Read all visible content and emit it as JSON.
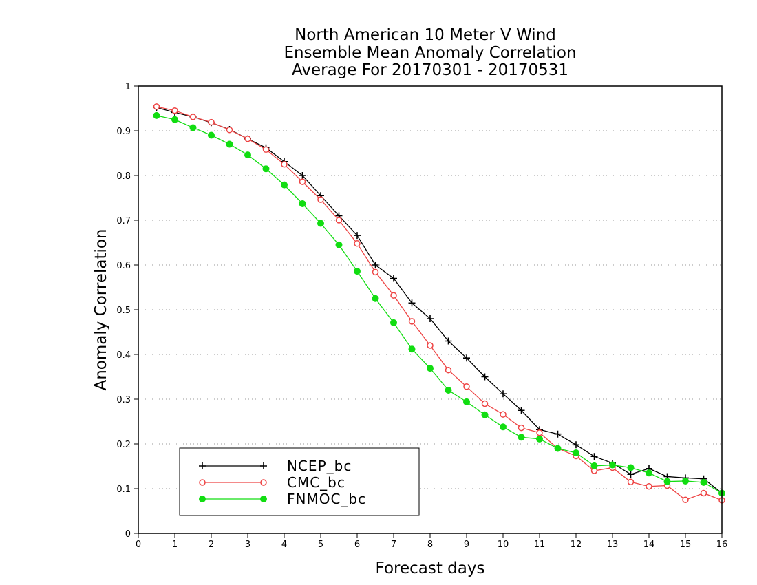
{
  "chart_data": {
    "type": "line",
    "title": [
      "North American 10 Meter V Wind",
      "Ensemble Mean Anomaly Correlation",
      "Average For 20170301 - 20170531"
    ],
    "xlabel": "Forecast days",
    "ylabel": "Anomaly Correlation",
    "xlim": [
      0,
      16
    ],
    "ylim": [
      0,
      1
    ],
    "xticks": [
      "0",
      "1",
      "2",
      "3",
      "4",
      "5",
      "6",
      "7",
      "8",
      "9",
      "10",
      "11",
      "12",
      "13",
      "14",
      "15",
      "16"
    ],
    "yticks": [
      "0",
      "0.1",
      "0.2",
      "0.3",
      "0.4",
      "0.5",
      "0.6",
      "0.7",
      "0.8",
      "0.9",
      "1"
    ],
    "grid": "horizontal dotted",
    "legend_position": "bottom-left",
    "x": [
      0.5,
      1,
      1.5,
      2,
      2.5,
      3,
      3.5,
      4,
      4.5,
      5,
      5.5,
      6,
      6.5,
      7,
      7.5,
      8,
      8.5,
      9,
      9.5,
      10,
      10.5,
      11,
      11.5,
      12,
      12.5,
      13,
      13.5,
      14,
      14.5,
      15,
      15.5,
      16
    ],
    "series": [
      {
        "name": "NCEP_bc",
        "color": "#000000",
        "marker": "plus",
        "values": [
          0.952,
          0.941,
          0.931,
          0.918,
          0.903,
          0.882,
          0.862,
          0.831,
          0.8,
          0.755,
          0.71,
          0.666,
          0.6,
          0.57,
          0.515,
          0.48,
          0.43,
          0.392,
          0.35,
          0.312,
          0.275,
          0.232,
          0.222,
          0.198,
          0.172,
          0.157,
          0.132,
          0.145,
          0.127,
          0.124,
          0.122,
          0.09
        ]
      },
      {
        "name": "CMC_bc",
        "color": "#ee4444",
        "marker": "open-circle",
        "values": [
          0.954,
          0.945,
          0.931,
          0.919,
          0.902,
          0.882,
          0.858,
          0.825,
          0.786,
          0.746,
          0.7,
          0.648,
          0.584,
          0.532,
          0.474,
          0.42,
          0.365,
          0.328,
          0.29,
          0.266,
          0.236,
          0.225,
          0.19,
          0.173,
          0.14,
          0.147,
          0.115,
          0.105,
          0.107,
          0.075,
          0.09,
          0.074
        ]
      },
      {
        "name": "FNMOC_bc",
        "color": "#11dd11",
        "marker": "filled-circle",
        "values": [
          0.934,
          0.925,
          0.907,
          0.89,
          0.87,
          0.846,
          0.815,
          0.779,
          0.737,
          0.693,
          0.645,
          0.586,
          0.525,
          0.471,
          0.412,
          0.369,
          0.32,
          0.294,
          0.265,
          0.238,
          0.215,
          0.211,
          0.19,
          0.18,
          0.151,
          0.153,
          0.147,
          0.135,
          0.116,
          0.117,
          0.114,
          0.09
        ]
      }
    ]
  }
}
